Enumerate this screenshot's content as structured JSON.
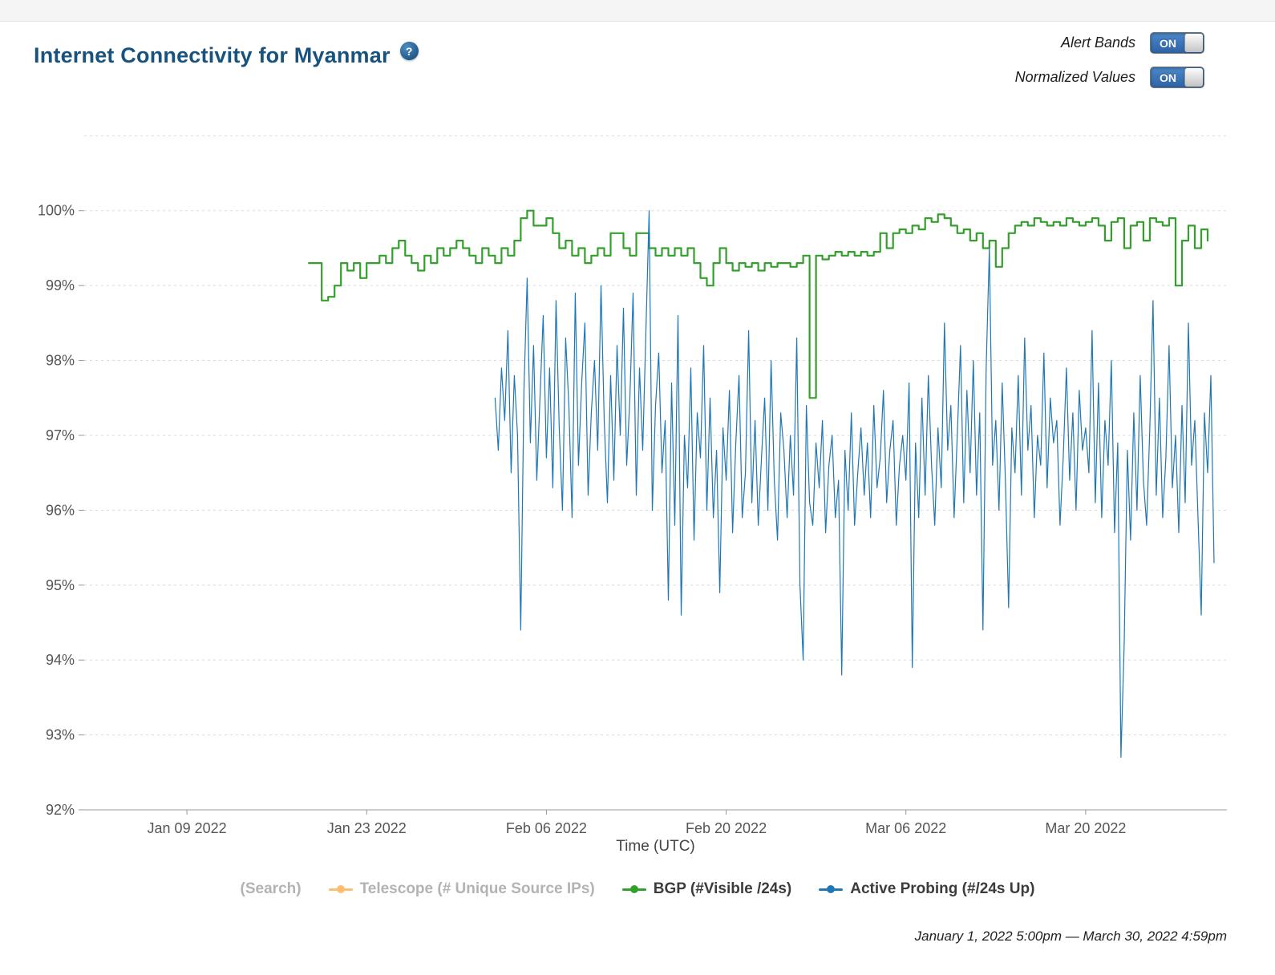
{
  "page": {
    "title": "Internet Connectivity for Myanmar",
    "help_icon": "?",
    "time_range": "January 1, 2022 5:00pm — March 30, 2022 4:59pm"
  },
  "colors": {
    "title": "#17537e",
    "bgp_green": "#33a02c",
    "probing_blue": "#1f77b4",
    "telescope_orange": "#fdbf6f",
    "toggle_blue": "#2d63a5"
  },
  "toggles": [
    {
      "label": "Alert Bands",
      "state": "ON"
    },
    {
      "label": "Normalized Values",
      "state": "ON"
    }
  ],
  "legend": [
    {
      "label": "(Search)",
      "color": null,
      "muted": true
    },
    {
      "label": "Telescope (# Unique Source IPs)",
      "color": "#fdbf6f",
      "muted": true
    },
    {
      "label": "BGP (#Visible /24s)",
      "color": "#33a02c",
      "muted": false
    },
    {
      "label": "Active Probing (#/24s Up)",
      "color": "#1f77b4",
      "muted": false
    }
  ],
  "chart_data": {
    "type": "line",
    "title": "Internet Connectivity for Myanmar",
    "xlabel": "Time (UTC)",
    "ylabel": "",
    "x_axis": {
      "unit": "days since Jan 1 2022",
      "range": [
        0,
        89
      ],
      "ticks": [
        {
          "day": 8,
          "label": "Jan 09 2022"
        },
        {
          "day": 22,
          "label": "Jan 23 2022"
        },
        {
          "day": 36,
          "label": "Feb 06 2022"
        },
        {
          "day": 50,
          "label": "Feb 20 2022"
        },
        {
          "day": 64,
          "label": "Mar 06 2022"
        },
        {
          "day": 78,
          "label": "Mar 20 2022"
        }
      ]
    },
    "y_axis": {
      "range": [
        92,
        101.1
      ],
      "ticks": [
        92,
        93,
        94,
        95,
        96,
        97,
        98,
        99,
        100
      ],
      "grid_values": [
        93,
        94,
        95,
        96,
        97,
        98,
        99,
        100,
        101
      ],
      "suffix": "%"
    },
    "series": [
      {
        "name": "BGP (#Visible /24s)",
        "color": "#33a02c",
        "width": 2.2,
        "step": true,
        "start_day": 17.5,
        "step_days": 0.5,
        "values": [
          99.3,
          99.3,
          98.8,
          98.85,
          99.0,
          99.3,
          99.2,
          99.3,
          99.1,
          99.3,
          99.3,
          99.4,
          99.3,
          99.5,
          99.6,
          99.4,
          99.3,
          99.2,
          99.4,
          99.3,
          99.5,
          99.4,
          99.5,
          99.6,
          99.5,
          99.4,
          99.3,
          99.5,
          99.4,
          99.3,
          99.5,
          99.4,
          99.6,
          99.9,
          100.0,
          99.8,
          99.8,
          99.9,
          99.7,
          99.5,
          99.6,
          99.4,
          99.5,
          99.3,
          99.4,
          99.5,
          99.4,
          99.7,
          99.7,
          99.5,
          99.4,
          99.7,
          99.7,
          99.5,
          99.4,
          99.5,
          99.4,
          99.5,
          99.4,
          99.5,
          99.3,
          99.1,
          99.0,
          99.3,
          99.5,
          99.3,
          99.2,
          99.3,
          99.25,
          99.3,
          99.2,
          99.3,
          99.25,
          99.3,
          99.3,
          99.25,
          99.3,
          99.4,
          97.5,
          99.4,
          99.35,
          99.4,
          99.45,
          99.4,
          99.45,
          99.4,
          99.45,
          99.4,
          99.45,
          99.7,
          99.5,
          99.7,
          99.75,
          99.7,
          99.8,
          99.75,
          99.9,
          99.85,
          99.95,
          99.9,
          99.8,
          99.7,
          99.75,
          99.6,
          99.7,
          99.5,
          99.6,
          99.25,
          99.5,
          99.7,
          99.8,
          99.85,
          99.8,
          99.9,
          99.85,
          99.8,
          99.85,
          99.8,
          99.9,
          99.85,
          99.8,
          99.85,
          99.9,
          99.8,
          99.6,
          99.85,
          99.9,
          99.5,
          99.8,
          99.85,
          99.6,
          99.9,
          99.85,
          99.8,
          99.9,
          99.0,
          99.6,
          99.8,
          99.5,
          99.75,
          99.6
        ]
      },
      {
        "name": "Active Probing (#/24s Up)",
        "color": "#1f77b4",
        "width": 1.2,
        "step": false,
        "start_day": 32,
        "step_days": 0.25,
        "values": [
          97.5,
          96.8,
          97.9,
          97.2,
          98.4,
          96.5,
          97.8,
          97.0,
          94.4,
          97.6,
          99.1,
          96.9,
          98.2,
          96.4,
          97.5,
          98.6,
          96.7,
          97.9,
          96.3,
          98.8,
          97.1,
          96.0,
          98.3,
          97.4,
          95.9,
          98.9,
          96.6,
          97.7,
          98.5,
          96.2,
          97.3,
          98.0,
          96.8,
          99.0,
          97.2,
          96.1,
          97.8,
          96.4,
          98.2,
          97.0,
          98.7,
          96.6,
          97.5,
          98.9,
          96.2,
          97.9,
          96.8,
          98.4,
          100.0,
          96.0,
          97.4,
          98.1,
          96.5,
          97.2,
          94.8,
          97.7,
          95.8,
          98.6,
          94.6,
          97.0,
          96.3,
          97.9,
          95.6,
          97.3,
          96.7,
          98.2,
          96.0,
          97.5,
          95.9,
          96.8,
          94.9,
          97.1,
          96.4,
          97.6,
          95.7,
          96.9,
          97.8,
          95.9,
          96.5,
          98.4,
          96.1,
          97.2,
          95.8,
          96.7,
          97.5,
          96.0,
          98.0,
          96.4,
          95.6,
          97.3,
          96.8,
          95.9,
          97.0,
          96.2,
          98.3,
          95.0,
          94.0,
          97.4,
          96.1,
          95.8,
          96.9,
          96.3,
          97.2,
          95.7,
          96.6,
          97.0,
          95.9,
          96.4,
          93.8,
          96.8,
          96.0,
          97.3,
          95.8,
          96.5,
          97.1,
          96.2,
          96.9,
          95.9,
          97.4,
          96.3,
          96.7,
          97.6,
          96.1,
          96.8,
          97.2,
          95.8,
          96.6,
          97.0,
          96.4,
          97.7,
          93.9,
          96.9,
          95.9,
          97.5,
          96.2,
          97.8,
          96.6,
          95.8,
          97.1,
          96.3,
          98.5,
          96.8,
          97.4,
          95.9,
          97.0,
          98.2,
          96.1,
          97.6,
          96.5,
          98.0,
          96.2,
          97.3,
          94.4,
          97.9,
          99.5,
          96.6,
          97.2,
          96.0,
          97.7,
          96.4,
          94.7,
          97.1,
          96.5,
          97.8,
          96.2,
          98.3,
          96.8,
          97.4,
          95.9,
          97.0,
          96.6,
          98.1,
          96.3,
          97.5,
          96.9,
          97.2,
          95.8,
          96.7,
          97.9,
          96.4,
          97.3,
          96.0,
          97.6,
          96.8,
          97.1,
          96.5,
          98.4,
          96.1,
          97.7,
          95.9,
          97.2,
          96.6,
          98.0,
          95.7,
          96.9,
          92.7,
          94.2,
          96.8,
          95.6,
          97.3,
          96.0,
          97.8,
          96.4,
          95.8,
          97.1,
          98.8,
          96.2,
          97.5,
          95.9,
          96.7,
          98.2,
          96.3,
          97.0,
          95.7,
          97.4,
          96.1,
          98.5,
          96.6,
          97.2,
          95.9,
          94.6,
          97.3,
          96.5,
          97.8,
          95.3
        ]
      }
    ]
  }
}
